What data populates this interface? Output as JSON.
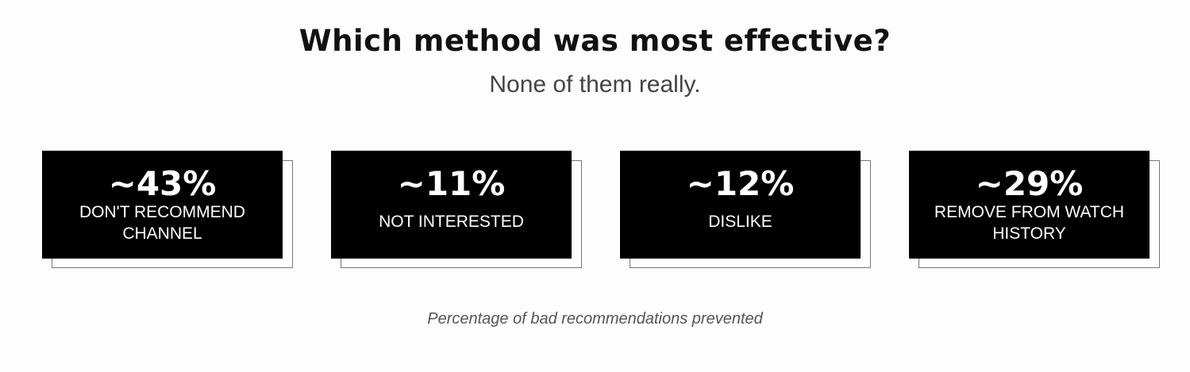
{
  "heading": {
    "title": "Which method was most effective?",
    "subtitle": "None of them really."
  },
  "cards": [
    {
      "value": "~43%",
      "label_line1": "DON'T RECOMMEND",
      "label_line2": "CHANNEL"
    },
    {
      "value": "~11%",
      "label_line1": "NOT INTERESTED",
      "label_line2": ""
    },
    {
      "value": "~12%",
      "label_line1": "DISLIKE",
      "label_line2": ""
    },
    {
      "value": "~29%",
      "label_line1": "REMOVE FROM WATCH",
      "label_line2": "HISTORY"
    }
  ],
  "caption": "Percentage of bad recommendations prevented",
  "colors": {
    "card_background": "#000000",
    "card_text": "#ffffff",
    "page_background": "#fdfdfd"
  }
}
